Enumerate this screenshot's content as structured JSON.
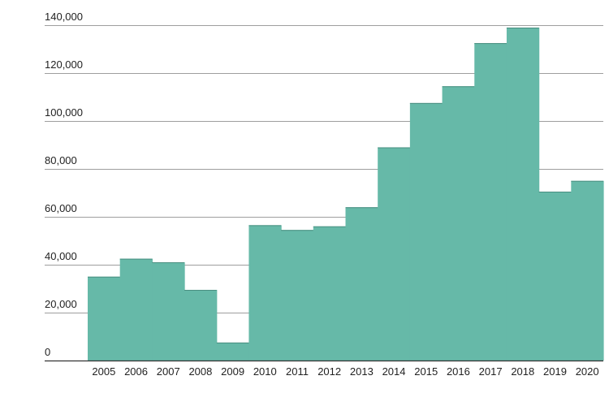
{
  "chart_data": {
    "type": "bar",
    "title": "",
    "xlabel": "",
    "ylabel": "",
    "categories": [
      "2005",
      "2006",
      "2007",
      "2008",
      "2009",
      "2010",
      "2011",
      "2012",
      "2013",
      "2014",
      "2015",
      "2016",
      "2017",
      "2018",
      "2019",
      "2020"
    ],
    "values": [
      35000,
      42500,
      41000,
      29500,
      7500,
      56500,
      54500,
      56000,
      64000,
      89000,
      107500,
      114500,
      132500,
      139000,
      70500,
      75000
    ],
    "ylim": [
      0,
      140000
    ],
    "yticks": [
      0,
      20000,
      40000,
      60000,
      80000,
      100000,
      120000,
      140000
    ],
    "ytick_labels": [
      "0",
      "20,000",
      "40,000",
      "60,000",
      "80,000",
      "100,000",
      "120,000",
      "140,000"
    ],
    "grid": true,
    "legend": "none",
    "colors": {
      "bar": "#66b9a8",
      "grid": "#9e9e9e",
      "baseline": "#333333",
      "text": "#222222"
    }
  }
}
